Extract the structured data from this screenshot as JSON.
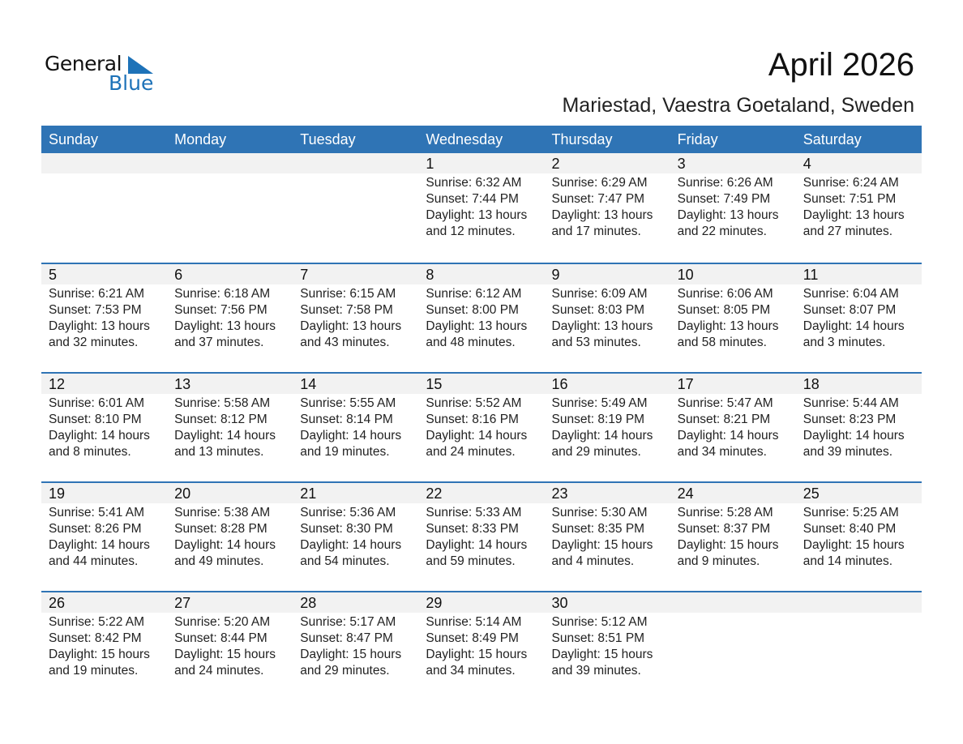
{
  "logo": {
    "word1": "General",
    "word2": "Blue",
    "color": "#1d72b8"
  },
  "header": {
    "title": "April 2026",
    "location": "Mariestad, Vaestra Goetaland, Sweden"
  },
  "colors": {
    "header_bg": "#2f74b5",
    "band_bg": "#f2f2f2"
  },
  "weekdays": [
    "Sunday",
    "Monday",
    "Tuesday",
    "Wednesday",
    "Thursday",
    "Friday",
    "Saturday"
  ],
  "weeks": [
    [
      null,
      null,
      null,
      {
        "day": "1",
        "sunrise": "Sunrise: 6:32 AM",
        "sunset": "Sunset: 7:44 PM",
        "daylight": "Daylight: 13 hours",
        "minutes": "and 12 minutes."
      },
      {
        "day": "2",
        "sunrise": "Sunrise: 6:29 AM",
        "sunset": "Sunset: 7:47 PM",
        "daylight": "Daylight: 13 hours",
        "minutes": "and 17 minutes."
      },
      {
        "day": "3",
        "sunrise": "Sunrise: 6:26 AM",
        "sunset": "Sunset: 7:49 PM",
        "daylight": "Daylight: 13 hours",
        "minutes": "and 22 minutes."
      },
      {
        "day": "4",
        "sunrise": "Sunrise: 6:24 AM",
        "sunset": "Sunset: 7:51 PM",
        "daylight": "Daylight: 13 hours",
        "minutes": "and 27 minutes."
      }
    ],
    [
      {
        "day": "5",
        "sunrise": "Sunrise: 6:21 AM",
        "sunset": "Sunset: 7:53 PM",
        "daylight": "Daylight: 13 hours",
        "minutes": "and 32 minutes."
      },
      {
        "day": "6",
        "sunrise": "Sunrise: 6:18 AM",
        "sunset": "Sunset: 7:56 PM",
        "daylight": "Daylight: 13 hours",
        "minutes": "and 37 minutes."
      },
      {
        "day": "7",
        "sunrise": "Sunrise: 6:15 AM",
        "sunset": "Sunset: 7:58 PM",
        "daylight": "Daylight: 13 hours",
        "minutes": "and 43 minutes."
      },
      {
        "day": "8",
        "sunrise": "Sunrise: 6:12 AM",
        "sunset": "Sunset: 8:00 PM",
        "daylight": "Daylight: 13 hours",
        "minutes": "and 48 minutes."
      },
      {
        "day": "9",
        "sunrise": "Sunrise: 6:09 AM",
        "sunset": "Sunset: 8:03 PM",
        "daylight": "Daylight: 13 hours",
        "minutes": "and 53 minutes."
      },
      {
        "day": "10",
        "sunrise": "Sunrise: 6:06 AM",
        "sunset": "Sunset: 8:05 PM",
        "daylight": "Daylight: 13 hours",
        "minutes": "and 58 minutes."
      },
      {
        "day": "11",
        "sunrise": "Sunrise: 6:04 AM",
        "sunset": "Sunset: 8:07 PM",
        "daylight": "Daylight: 14 hours",
        "minutes": "and 3 minutes."
      }
    ],
    [
      {
        "day": "12",
        "sunrise": "Sunrise: 6:01 AM",
        "sunset": "Sunset: 8:10 PM",
        "daylight": "Daylight: 14 hours",
        "minutes": "and 8 minutes."
      },
      {
        "day": "13",
        "sunrise": "Sunrise: 5:58 AM",
        "sunset": "Sunset: 8:12 PM",
        "daylight": "Daylight: 14 hours",
        "minutes": "and 13 minutes."
      },
      {
        "day": "14",
        "sunrise": "Sunrise: 5:55 AM",
        "sunset": "Sunset: 8:14 PM",
        "daylight": "Daylight: 14 hours",
        "minutes": "and 19 minutes."
      },
      {
        "day": "15",
        "sunrise": "Sunrise: 5:52 AM",
        "sunset": "Sunset: 8:16 PM",
        "daylight": "Daylight: 14 hours",
        "minutes": "and 24 minutes."
      },
      {
        "day": "16",
        "sunrise": "Sunrise: 5:49 AM",
        "sunset": "Sunset: 8:19 PM",
        "daylight": "Daylight: 14 hours",
        "minutes": "and 29 minutes."
      },
      {
        "day": "17",
        "sunrise": "Sunrise: 5:47 AM",
        "sunset": "Sunset: 8:21 PM",
        "daylight": "Daylight: 14 hours",
        "minutes": "and 34 minutes."
      },
      {
        "day": "18",
        "sunrise": "Sunrise: 5:44 AM",
        "sunset": "Sunset: 8:23 PM",
        "daylight": "Daylight: 14 hours",
        "minutes": "and 39 minutes."
      }
    ],
    [
      {
        "day": "19",
        "sunrise": "Sunrise: 5:41 AM",
        "sunset": "Sunset: 8:26 PM",
        "daylight": "Daylight: 14 hours",
        "minutes": "and 44 minutes."
      },
      {
        "day": "20",
        "sunrise": "Sunrise: 5:38 AM",
        "sunset": "Sunset: 8:28 PM",
        "daylight": "Daylight: 14 hours",
        "minutes": "and 49 minutes."
      },
      {
        "day": "21",
        "sunrise": "Sunrise: 5:36 AM",
        "sunset": "Sunset: 8:30 PM",
        "daylight": "Daylight: 14 hours",
        "minutes": "and 54 minutes."
      },
      {
        "day": "22",
        "sunrise": "Sunrise: 5:33 AM",
        "sunset": "Sunset: 8:33 PM",
        "daylight": "Daylight: 14 hours",
        "minutes": "and 59 minutes."
      },
      {
        "day": "23",
        "sunrise": "Sunrise: 5:30 AM",
        "sunset": "Sunset: 8:35 PM",
        "daylight": "Daylight: 15 hours",
        "minutes": "and 4 minutes."
      },
      {
        "day": "24",
        "sunrise": "Sunrise: 5:28 AM",
        "sunset": "Sunset: 8:37 PM",
        "daylight": "Daylight: 15 hours",
        "minutes": "and 9 minutes."
      },
      {
        "day": "25",
        "sunrise": "Sunrise: 5:25 AM",
        "sunset": "Sunset: 8:40 PM",
        "daylight": "Daylight: 15 hours",
        "minutes": "and 14 minutes."
      }
    ],
    [
      {
        "day": "26",
        "sunrise": "Sunrise: 5:22 AM",
        "sunset": "Sunset: 8:42 PM",
        "daylight": "Daylight: 15 hours",
        "minutes": "and 19 minutes."
      },
      {
        "day": "27",
        "sunrise": "Sunrise: 5:20 AM",
        "sunset": "Sunset: 8:44 PM",
        "daylight": "Daylight: 15 hours",
        "minutes": "and 24 minutes."
      },
      {
        "day": "28",
        "sunrise": "Sunrise: 5:17 AM",
        "sunset": "Sunset: 8:47 PM",
        "daylight": "Daylight: 15 hours",
        "minutes": "and 29 minutes."
      },
      {
        "day": "29",
        "sunrise": "Sunrise: 5:14 AM",
        "sunset": "Sunset: 8:49 PM",
        "daylight": "Daylight: 15 hours",
        "minutes": "and 34 minutes."
      },
      {
        "day": "30",
        "sunrise": "Sunrise: 5:12 AM",
        "sunset": "Sunset: 8:51 PM",
        "daylight": "Daylight: 15 hours",
        "minutes": "and 39 minutes."
      },
      null,
      null
    ]
  ]
}
